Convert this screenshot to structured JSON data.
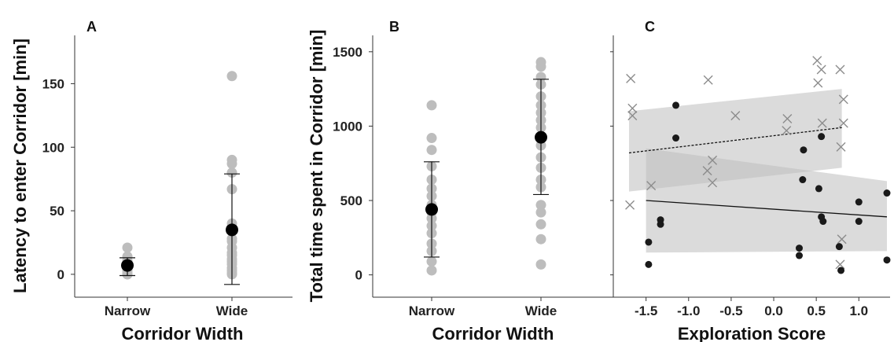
{
  "chart_data": [
    {
      "type": "scatter",
      "panel": "A",
      "xlabel": "Corridor Width",
      "ylabel": "Latency to enter Corridor [min]",
      "categories": [
        "Narrow",
        "Wide"
      ],
      "ylim": [
        -18,
        188
      ],
      "yticks": [
        0,
        50,
        100,
        150
      ],
      "points": [
        {
          "category": "Narrow",
          "values": [
            21,
            14,
            11,
            8,
            5,
            3,
            1,
            0,
            0
          ]
        },
        {
          "category": "Wide",
          "values": [
            156,
            90,
            87,
            80,
            67,
            40,
            37,
            28,
            26,
            21,
            17,
            15,
            12,
            10,
            8,
            5,
            3,
            1,
            0
          ]
        }
      ],
      "summary": [
        {
          "category": "Narrow",
          "mean": 7,
          "lower": -1,
          "upper": 13
        },
        {
          "category": "Wide",
          "mean": 35,
          "lower": -8,
          "upper": 79
        }
      ],
      "colors": {
        "points": "#bdbdbd",
        "mean": "#000000"
      }
    },
    {
      "type": "scatter",
      "panel": "B",
      "xlabel": "Corridor Width",
      "ylabel": "Total time spent in Corridor [min]",
      "categories": [
        "Narrow",
        "Wide"
      ],
      "ylim": [
        -150,
        1610
      ],
      "yticks": [
        0,
        500,
        1000,
        1500
      ],
      "points": [
        {
          "category": "Narrow",
          "values": [
            1140,
            920,
            840,
            730,
            640,
            580,
            530,
            470,
            420,
            380,
            330,
            280,
            210,
            160,
            90,
            30
          ]
        },
        {
          "category": "Wide",
          "values": [
            1430,
            1400,
            1330,
            1280,
            1200,
            1140,
            1090,
            1040,
            990,
            930,
            870,
            790,
            720,
            640,
            590,
            470,
            420,
            340,
            240,
            70
          ]
        }
      ],
      "summary": [
        {
          "category": "Narrow",
          "mean": 440,
          "lower": 120,
          "upper": 760
        },
        {
          "category": "Wide",
          "mean": 925,
          "lower": 540,
          "upper": 1315
        }
      ],
      "colors": {
        "points": "#bdbdbd",
        "mean": "#000000"
      }
    },
    {
      "type": "scatter",
      "panel": "C",
      "xlabel": "Exploration Score",
      "xlim": [
        -1.8,
        1.4
      ],
      "xticks": [
        -1.5,
        -1.0,
        -0.5,
        0.0,
        0.5,
        1.0
      ],
      "ylim": [
        -150,
        1610
      ],
      "series": [
        {
          "marker": "cross",
          "points": [
            [
              -1.68,
              1320
            ],
            [
              -1.66,
              1120
            ],
            [
              -1.66,
              1070
            ],
            [
              -1.69,
              470
            ],
            [
              -1.44,
              600
            ],
            [
              -0.77,
              1310
            ],
            [
              -0.78,
              700
            ],
            [
              -0.72,
              770
            ],
            [
              -0.72,
              620
            ],
            [
              -0.45,
              1070
            ],
            [
              0.16,
              1050
            ],
            [
              0.15,
              970
            ],
            [
              0.51,
              1440
            ],
            [
              0.56,
              1380
            ],
            [
              0.52,
              1290
            ],
            [
              0.57,
              1020
            ],
            [
              0.78,
              1380
            ],
            [
              0.82,
              1180
            ],
            [
              0.82,
              1020
            ],
            [
              0.79,
              860
            ],
            [
              0.8,
              240
            ],
            [
              0.78,
              70
            ]
          ],
          "fit": {
            "x0": -1.7,
            "y0": 820,
            "x1": 0.8,
            "y1": 990
          },
          "band": {
            "x0": -1.7,
            "lower0": 560,
            "upper0": 1100,
            "x1": 0.8,
            "lower1": 720,
            "upper1": 1250
          }
        },
        {
          "marker": "dot",
          "points": [
            [
              -1.15,
              1140
            ],
            [
              -1.15,
              920
            ],
            [
              -1.47,
              220
            ],
            [
              -1.47,
              70
            ],
            [
              -1.33,
              370
            ],
            [
              -1.33,
              340
            ],
            [
              0.3,
              180
            ],
            [
              0.3,
              130
            ],
            [
              0.34,
              640
            ],
            [
              0.35,
              840
            ],
            [
              0.56,
              930
            ],
            [
              0.53,
              580
            ],
            [
              0.56,
              390
            ],
            [
              0.58,
              360
            ],
            [
              0.77,
              190
            ],
            [
              0.79,
              30
            ],
            [
              1.0,
              490
            ],
            [
              1.0,
              360
            ],
            [
              1.33,
              550
            ],
            [
              1.33,
              100
            ]
          ],
          "fit": {
            "x0": -1.5,
            "y0": 500,
            "x1": 1.33,
            "y1": 390
          },
          "band": {
            "x0": -1.5,
            "lower0": 150,
            "upper0": 850,
            "x1": 1.33,
            "lower1": 160,
            "upper1": 630
          }
        }
      ],
      "colors": {
        "cross": "#8c8c8c",
        "dot": "#1a1a1a",
        "band": "#bdbdbd"
      }
    }
  ]
}
